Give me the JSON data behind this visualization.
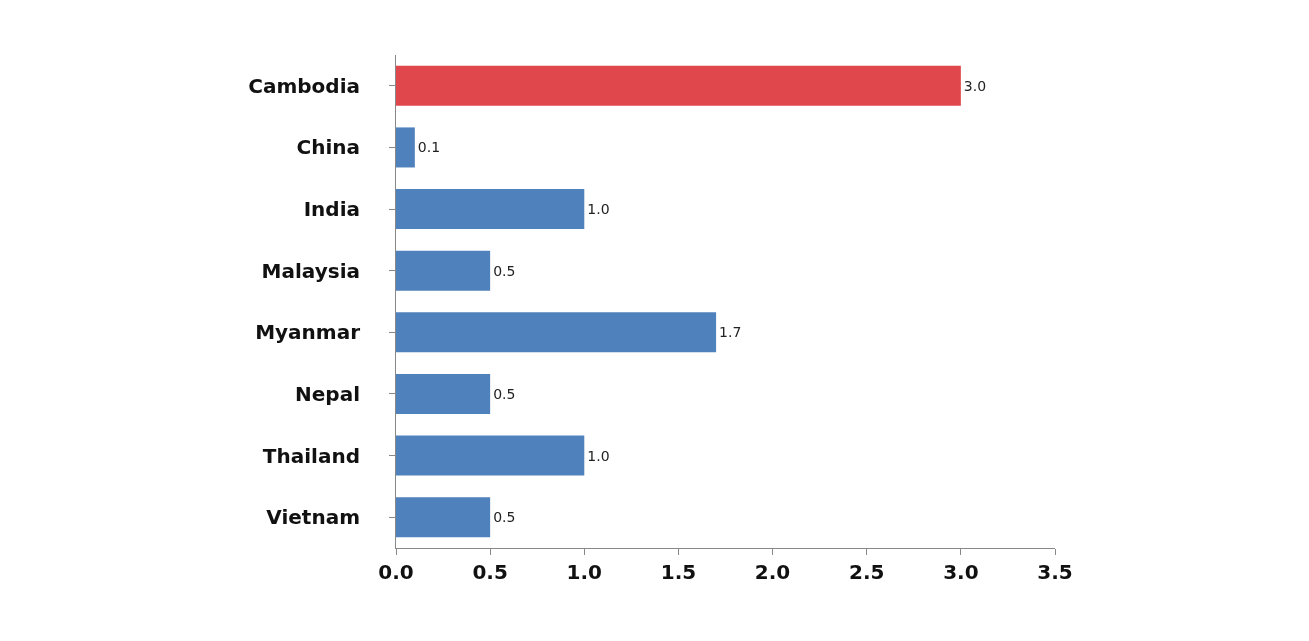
{
  "chart_data": {
    "type": "bar",
    "orientation": "horizontal",
    "categories": [
      "Cambodia",
      "China",
      "India",
      "Malaysia",
      "Myanmar",
      "Nepal",
      "Thailand",
      "Vietnam"
    ],
    "values": [
      3.0,
      0.1,
      1.0,
      0.5,
      1.7,
      0.5,
      1.0,
      0.5
    ],
    "colors": [
      "#e0474c",
      "#4f81bd",
      "#4f81bd",
      "#4f81bd",
      "#4f81bd",
      "#4f81bd",
      "#4f81bd",
      "#4f81bd"
    ],
    "value_labels": [
      "3.0",
      "0.1",
      "1.0",
      "0.5",
      "1.7",
      "0.5",
      "1.0",
      "0.5"
    ],
    "xlim": [
      0,
      3.5
    ],
    "xticks": [
      {
        "value": 0,
        "label": "0.0"
      },
      {
        "value": 0.5,
        "label": "0.5"
      },
      {
        "value": 1,
        "label": "1.0"
      },
      {
        "value": 1.5,
        "label": "1.5"
      },
      {
        "value": 2,
        "label": "2.0"
      },
      {
        "value": 2.5,
        "label": "2.5"
      },
      {
        "value": 3,
        "label": "3.0"
      },
      {
        "value": 3.5,
        "label": "3.5"
      }
    ],
    "legend": false
  }
}
